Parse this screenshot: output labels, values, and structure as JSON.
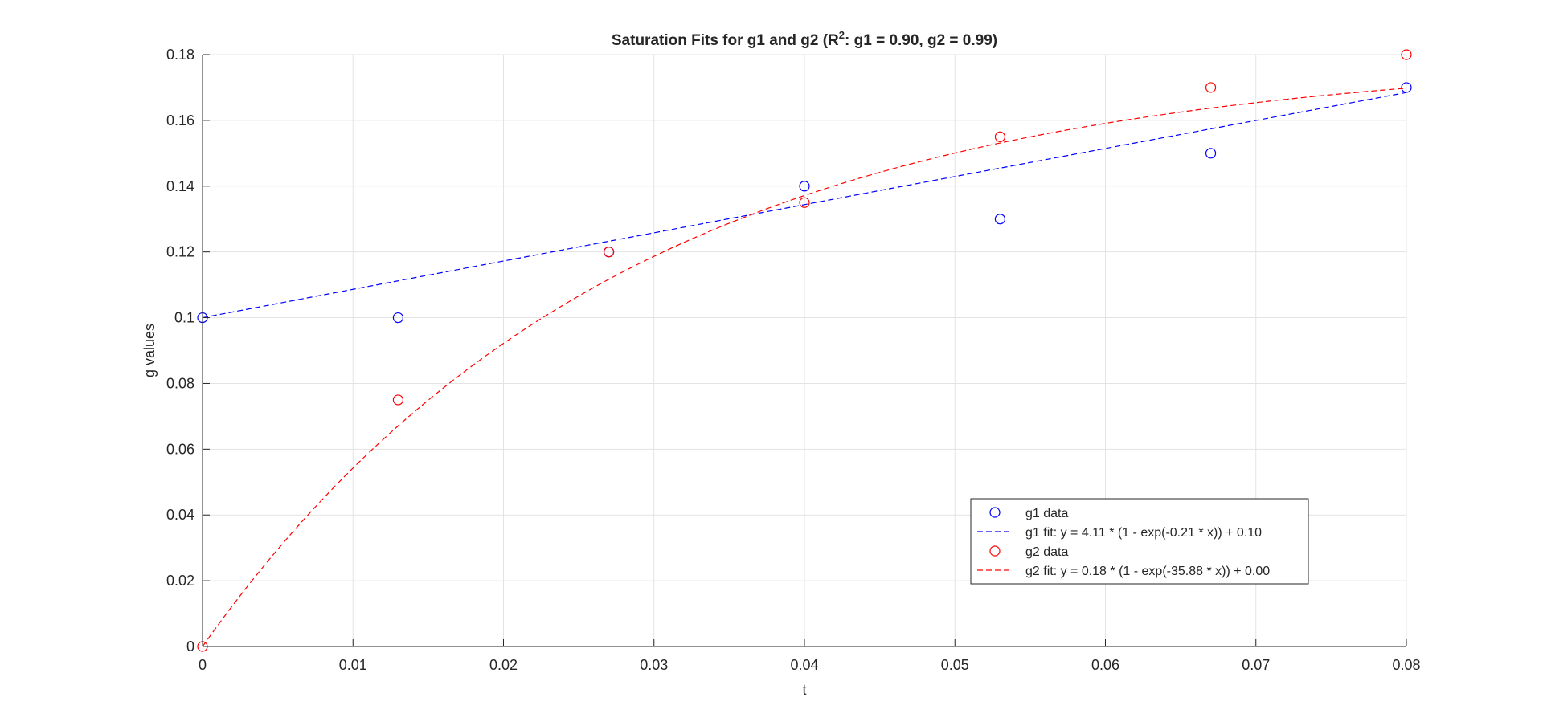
{
  "chart_data": {
    "type": "scatter",
    "title_prefix": "Saturation Fits for g1 and g2 (R",
    "title_superscript": "2",
    "title_suffix": ": g1 = 0.90, g2 = 0.99)",
    "xlabel": "t",
    "ylabel": "g values",
    "xlim": [
      0,
      0.08
    ],
    "ylim": [
      0,
      0.18
    ],
    "xticks": [
      0,
      0.01,
      0.02,
      0.03,
      0.04,
      0.05,
      0.06,
      0.07,
      0.08
    ],
    "xtick_labels": [
      "0",
      "0.01",
      "0.02",
      "0.03",
      "0.04",
      "0.05",
      "0.06",
      "0.07",
      "0.08"
    ],
    "yticks": [
      0,
      0.02,
      0.04,
      0.06,
      0.08,
      0.1,
      0.12,
      0.14,
      0.16,
      0.18
    ],
    "ytick_labels": [
      "0",
      "0.02",
      "0.04",
      "0.06",
      "0.08",
      "0.1",
      "0.12",
      "0.14",
      "0.16",
      "0.18"
    ],
    "grid": true,
    "legend_position": "bottom-right",
    "series": [
      {
        "name": "g1 data",
        "kind": "points",
        "marker": "circle-open",
        "color": "#0000ff",
        "x": [
          0,
          0.013,
          0.027,
          0.04,
          0.053,
          0.067,
          0.08
        ],
        "y": [
          0.1,
          0.1,
          0.12,
          0.14,
          0.13,
          0.15,
          0.17
        ]
      },
      {
        "name": "g1 fit: y = 4.11 * (1 - exp(-0.21 * x)) + 0.10",
        "kind": "fit",
        "line": "dashed",
        "color": "#0000ff",
        "model": {
          "a": 4.11,
          "b": 0.21,
          "c": 0.1
        },
        "x_range": [
          0,
          0.08
        ]
      },
      {
        "name": "g2 data",
        "kind": "points",
        "marker": "circle-open",
        "color": "#ff0000",
        "x": [
          0,
          0.013,
          0.027,
          0.04,
          0.053,
          0.067,
          0.08
        ],
        "y": [
          0,
          0.075,
          0.12,
          0.135,
          0.155,
          0.17,
          0.18
        ]
      },
      {
        "name": "g2 fit: y = 0.18 * (1 - exp(-35.88 * x)) + 0.00",
        "kind": "fit",
        "line": "dashed",
        "color": "#ff0000",
        "model": {
          "a": 0.18,
          "b": 35.88,
          "c": 0.0
        },
        "x_range": [
          0,
          0.08
        ]
      }
    ]
  }
}
